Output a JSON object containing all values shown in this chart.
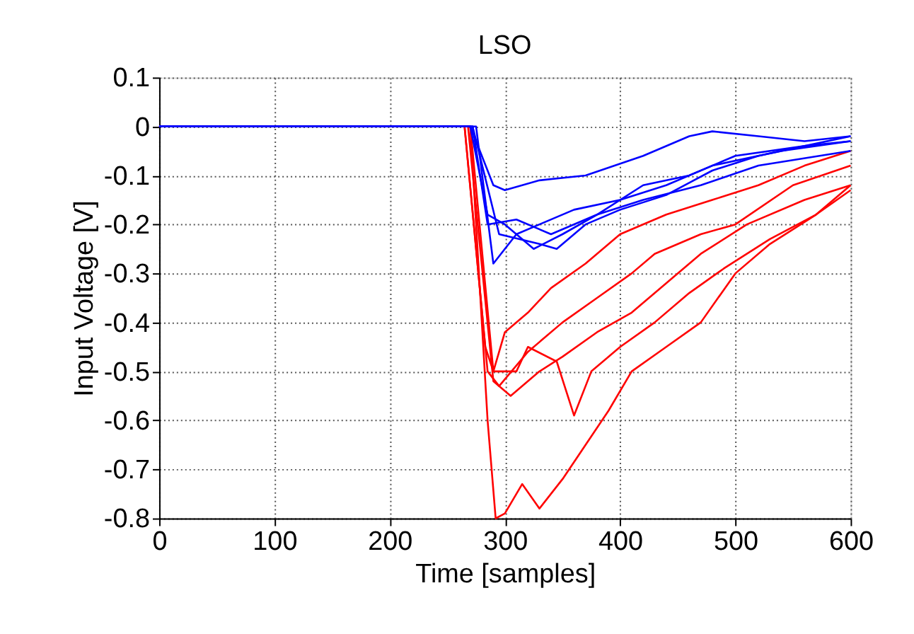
{
  "chart_data": {
    "type": "line",
    "title": "LSO",
    "xlabel": "Time [samples]",
    "ylabel": "Input Voltage [V]",
    "xlim": [
      0,
      600
    ],
    "xticks": [
      0,
      100,
      200,
      300,
      400,
      500,
      600
    ],
    "ylim": [
      -0.8,
      0.1
    ],
    "yticks": [
      0.1,
      0,
      -0.1,
      -0.2,
      -0.3,
      -0.4,
      -0.5,
      -0.6,
      -0.7,
      -0.8
    ],
    "grid": true,
    "legend": false,
    "marker": "none",
    "line_style": "solid",
    "series": [
      {
        "color": "#ff0000",
        "x": [
          0,
          265,
          283,
          290,
          300,
          320,
          340,
          370,
          400,
          440,
          480,
          520,
          560,
          600
        ],
        "values": [
          0,
          0,
          -0.45,
          -0.5,
          -0.42,
          -0.38,
          -0.33,
          -0.28,
          -0.22,
          -0.18,
          -0.15,
          -0.12,
          -0.08,
          -0.05
        ]
      },
      {
        "color": "#ff0000",
        "x": [
          0,
          265,
          285,
          295,
          320,
          350,
          380,
          410,
          430,
          470,
          500,
          550,
          600
        ],
        "values": [
          0,
          0,
          -0.5,
          -0.53,
          -0.46,
          -0.4,
          -0.35,
          -0.3,
          -0.26,
          -0.22,
          -0.2,
          -0.12,
          -0.08
        ]
      },
      {
        "color": "#ff0000",
        "x": [
          0,
          268,
          290,
          305,
          330,
          350,
          380,
          410,
          440,
          470,
          510,
          560,
          600
        ],
        "values": [
          0,
          0,
          -0.52,
          -0.55,
          -0.5,
          -0.47,
          -0.42,
          -0.38,
          -0.32,
          -0.26,
          -0.2,
          -0.15,
          -0.12
        ]
      },
      {
        "color": "#ff0000",
        "x": [
          0,
          270,
          290,
          310,
          320,
          345,
          360,
          375,
          400,
          430,
          460,
          490,
          530,
          570,
          600
        ],
        "values": [
          0,
          0,
          -0.5,
          -0.5,
          -0.45,
          -0.48,
          -0.59,
          -0.5,
          -0.45,
          -0.4,
          -0.34,
          -0.29,
          -0.23,
          -0.18,
          -0.13
        ]
      },
      {
        "color": "#ff0000",
        "x": [
          0,
          270,
          285,
          292,
          300,
          315,
          330,
          350,
          370,
          390,
          410,
          440,
          470,
          500,
          530,
          570,
          600
        ],
        "values": [
          0,
          0,
          -0.6,
          -0.8,
          -0.79,
          -0.73,
          -0.78,
          -0.72,
          -0.65,
          -0.58,
          -0.5,
          -0.45,
          -0.4,
          -0.3,
          -0.24,
          -0.18,
          -0.12
        ]
      },
      {
        "color": "#0000ff",
        "x": [
          0,
          270,
          290,
          300,
          330,
          370,
          420,
          460,
          480,
          520,
          560,
          600
        ],
        "values": [
          0,
          0,
          -0.12,
          -0.13,
          -0.11,
          -0.1,
          -0.06,
          -0.02,
          -0.01,
          -0.02,
          -0.03,
          -0.02
        ]
      },
      {
        "color": "#0000ff",
        "x": [
          0,
          272,
          285,
          310,
          340,
          380,
          420,
          460,
          500,
          560,
          600
        ],
        "values": [
          0,
          0,
          -0.2,
          -0.19,
          -0.22,
          -0.18,
          -0.12,
          -0.1,
          -0.06,
          -0.04,
          -0.02
        ]
      },
      {
        "color": "#0000ff",
        "x": [
          0,
          275,
          290,
          310,
          330,
          360,
          400,
          440,
          480,
          540,
          600
        ],
        "values": [
          0,
          0,
          -0.28,
          -0.22,
          -0.2,
          -0.17,
          -0.15,
          -0.12,
          -0.08,
          -0.05,
          -0.03
        ]
      },
      {
        "color": "#0000ff",
        "x": [
          0,
          272,
          295,
          330,
          345,
          370,
          400,
          440,
          480,
          520,
          560,
          600
        ],
        "values": [
          0,
          0,
          -0.22,
          -0.24,
          -0.25,
          -0.2,
          -0.17,
          -0.14,
          -0.09,
          -0.06,
          -0.04,
          -0.03
        ]
      },
      {
        "color": "#0000ff",
        "x": [
          0,
          270,
          285,
          300,
          325,
          350,
          380,
          420,
          470,
          520,
          600
        ],
        "values": [
          0,
          0,
          -0.18,
          -0.2,
          -0.25,
          -0.22,
          -0.18,
          -0.15,
          -0.12,
          -0.08,
          -0.05
        ]
      }
    ]
  }
}
